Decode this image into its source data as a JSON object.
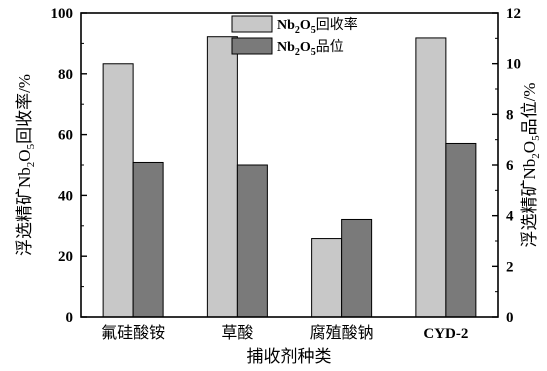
{
  "chart_data": {
    "type": "bar",
    "categories": [
      "氟硅酸铵",
      "草酸",
      "腐殖酸钠",
      "CYD-2"
    ],
    "xlabel": "捕收剂种类",
    "left_axis": {
      "label_parts": [
        "浮选精矿Nb",
        "2",
        "O",
        "5",
        "回收率/%"
      ],
      "ylim": [
        0,
        100
      ],
      "ticks": [
        0,
        20,
        40,
        60,
        80,
        100
      ]
    },
    "right_axis": {
      "label_parts": [
        "浮选精矿Nb",
        "2",
        "O",
        "5",
        "品位/%"
      ],
      "ylim": [
        0,
        12
      ],
      "ticks": [
        0,
        2,
        4,
        6,
        8,
        10,
        12
      ]
    },
    "series": [
      {
        "name_parts": [
          "Nb",
          "2",
          "O",
          "5",
          "回收率"
        ],
        "axis": "left",
        "color": "#c8c8c8",
        "values": [
          83.3,
          92.2,
          25.8,
          91.8
        ]
      },
      {
        "name_parts": [
          "Nb",
          "2",
          "O",
          "5",
          "品位"
        ],
        "axis": "right",
        "color": "#7a7a7a",
        "values": [
          6.1,
          6.0,
          3.85,
          6.85
        ]
      }
    ],
    "legend_position": "top-center",
    "grid": false
  }
}
